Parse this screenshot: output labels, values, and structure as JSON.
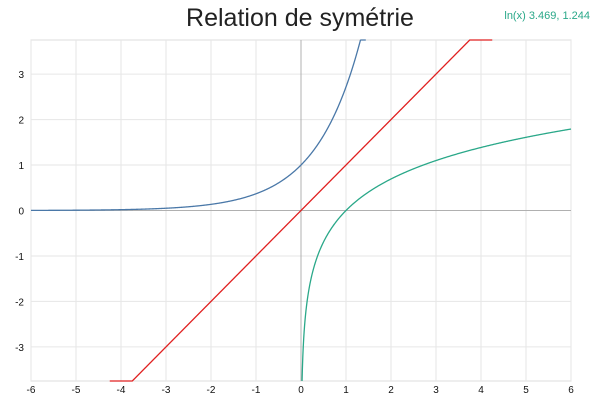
{
  "title": "Relation de symétrie",
  "readout": {
    "text": "ln(x) 3.469, 1.244",
    "color": "#2aa889"
  },
  "chart_data": {
    "type": "line",
    "title": "Relation de symétrie",
    "xlabel": "",
    "ylabel": "",
    "xlim": [
      -6,
      6
    ],
    "ylim": [
      -3.75,
      3.75
    ],
    "x_ticks": [
      -6,
      -5,
      -4,
      -3,
      -2,
      -1,
      0,
      1,
      2,
      3,
      4,
      5,
      6
    ],
    "y_ticks": [
      -3,
      -2,
      -1,
      0,
      1,
      2,
      3
    ],
    "grid": true,
    "series": [
      {
        "name": "",
        "function": "exp(x)",
        "color": "#4a78a8"
      },
      {
        "name": "",
        "function": "x",
        "color": "#e02020"
      },
      {
        "name": "ln(x)",
        "function": "ln(x)",
        "color": "#2aa889"
      }
    ]
  }
}
